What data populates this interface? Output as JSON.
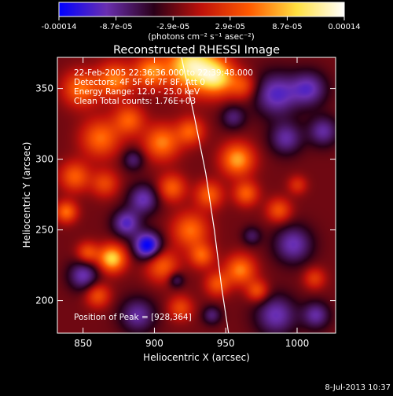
{
  "colorbar": {
    "tick_labels": [
      "-0.00014",
      "-8.7e-05",
      "-2.9e-05",
      "2.9e-05",
      "8.7e-05",
      "0.00014"
    ],
    "unit_label": "(photons cm⁻² s⁻¹ asec⁻²)",
    "colors": [
      "#0000ff",
      "#6a2fb0",
      "#2a0018",
      "#c0120a",
      "#ff5a00",
      "#ffe040",
      "#ffffff"
    ]
  },
  "image_info": {
    "date_range": "22-Feb-2005 22:36:36.000 to 22:39:48.000",
    "detectors": "Detectors: 4F 5F 6F 7F 8F, Att 0",
    "energy_range": "Energy Range: 12.0 - 25.0 keV",
    "clean_counts": "Clean     Total counts: 1.76E+03",
    "peak_text": "Position of Peak = [928,364]"
  },
  "footer": {
    "date": "8-Jul-2013 10:37"
  },
  "chart_data": {
    "type": "heatmap",
    "title": "Reconstructed RHESSI Image",
    "xlabel": "Heliocentric X (arcsec)",
    "ylabel": "Heliocentric Y (arcsec)",
    "xlim": [
      832,
      1027
    ],
    "ylim": [
      177,
      372
    ],
    "x_ticks": [
      850,
      900,
      950,
      1000
    ],
    "y_ticks": [
      200,
      250,
      300,
      350
    ],
    "clim": [
      -0.00014,
      0.00014
    ],
    "peak_position": [
      928,
      364
    ],
    "limb_curve": {
      "x": [
        919,
        928,
        936,
        942,
        947,
        952
      ],
      "y": [
        372,
        330,
        290,
        250,
        210,
        177
      ]
    },
    "blobs": [
      {
        "x": 926,
        "y": 366,
        "r": 18,
        "v": 1.0
      },
      {
        "x": 944,
        "y": 358,
        "r": 13,
        "v": 0.75
      },
      {
        "x": 897,
        "y": 362,
        "r": 12,
        "v": 0.6
      },
      {
        "x": 872,
        "y": 356,
        "r": 13,
        "v": 0.6
      },
      {
        "x": 848,
        "y": 350,
        "r": 13,
        "v": 0.55
      },
      {
        "x": 962,
        "y": 352,
        "r": 10,
        "v": 0.4
      },
      {
        "x": 862,
        "y": 315,
        "r": 14,
        "v": 0.55
      },
      {
        "x": 882,
        "y": 328,
        "r": 11,
        "v": 0.5
      },
      {
        "x": 905,
        "y": 312,
        "r": 13,
        "v": 0.6
      },
      {
        "x": 925,
        "y": 320,
        "r": 10,
        "v": 0.5
      },
      {
        "x": 844,
        "y": 288,
        "r": 11,
        "v": 0.5
      },
      {
        "x": 865,
        "y": 283,
        "r": 10,
        "v": 0.4
      },
      {
        "x": 912,
        "y": 280,
        "r": 10,
        "v": 0.5
      },
      {
        "x": 938,
        "y": 275,
        "r": 10,
        "v": 0.5
      },
      {
        "x": 958,
        "y": 300,
        "r": 12,
        "v": 0.7
      },
      {
        "x": 964,
        "y": 276,
        "r": 9,
        "v": 0.5
      },
      {
        "x": 987,
        "y": 264,
        "r": 9,
        "v": 0.45
      },
      {
        "x": 838,
        "y": 263,
        "r": 8,
        "v": 0.55
      },
      {
        "x": 925,
        "y": 250,
        "r": 13,
        "v": 0.55
      },
      {
        "x": 905,
        "y": 225,
        "r": 12,
        "v": 0.5
      },
      {
        "x": 933,
        "y": 232,
        "r": 9,
        "v": 0.5
      },
      {
        "x": 870,
        "y": 230,
        "r": 10,
        "v": 0.85
      },
      {
        "x": 853,
        "y": 234,
        "r": 8,
        "v": 0.45
      },
      {
        "x": 860,
        "y": 204,
        "r": 9,
        "v": 0.45
      },
      {
        "x": 918,
        "y": 195,
        "r": 9,
        "v": 0.4
      },
      {
        "x": 944,
        "y": 212,
        "r": 9,
        "v": 0.45
      },
      {
        "x": 960,
        "y": 222,
        "r": 11,
        "v": 0.6
      },
      {
        "x": 972,
        "y": 207,
        "r": 8,
        "v": 0.45
      },
      {
        "x": 1000,
        "y": 282,
        "r": 7,
        "v": 0.3
      },
      {
        "x": 1012,
        "y": 216,
        "r": 8,
        "v": 0.35
      },
      {
        "x": 892,
        "y": 272,
        "r": 11,
        "v": -0.5
      },
      {
        "x": 895,
        "y": 239,
        "r": 10,
        "v": -0.85
      },
      {
        "x": 880,
        "y": 255,
        "r": 10,
        "v": -0.55
      },
      {
        "x": 850,
        "y": 218,
        "r": 11,
        "v": -0.5
      },
      {
        "x": 888,
        "y": 190,
        "r": 13,
        "v": -0.45
      },
      {
        "x": 915,
        "y": 215,
        "r": 6,
        "v": -0.35
      },
      {
        "x": 985,
        "y": 346,
        "r": 16,
        "v": -0.55
      },
      {
        "x": 1008,
        "y": 350,
        "r": 13,
        "v": -0.5
      },
      {
        "x": 1018,
        "y": 320,
        "r": 11,
        "v": -0.45
      },
      {
        "x": 992,
        "y": 315,
        "r": 12,
        "v": -0.45
      },
      {
        "x": 997,
        "y": 240,
        "r": 14,
        "v": -0.5
      },
      {
        "x": 985,
        "y": 190,
        "r": 15,
        "v": -0.5
      },
      {
        "x": 1013,
        "y": 190,
        "r": 10,
        "v": -0.45
      },
      {
        "x": 955,
        "y": 330,
        "r": 9,
        "v": -0.35
      },
      {
        "x": 885,
        "y": 300,
        "r": 8,
        "v": -0.35
      },
      {
        "x": 940,
        "y": 190,
        "r": 7,
        "v": -0.35
      },
      {
        "x": 968,
        "y": 246,
        "r": 7,
        "v": -0.3
      }
    ]
  }
}
